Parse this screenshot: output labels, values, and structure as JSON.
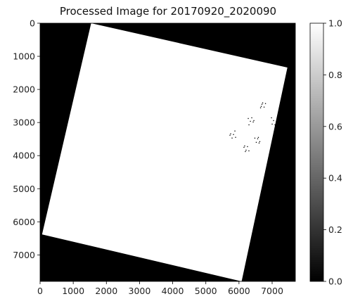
{
  "chart_data": {
    "type": "heatmap",
    "title": "Processed Image for 20170920_2020090",
    "xlabel": "",
    "ylabel": "",
    "xlim": [
      0,
      7700
    ],
    "ylim": [
      7800,
      0
    ],
    "x_ticks": [
      0,
      1000,
      2000,
      3000,
      4000,
      5000,
      6000,
      7000
    ],
    "y_ticks": [
      0,
      1000,
      2000,
      3000,
      4000,
      5000,
      6000,
      7000
    ],
    "x_tick_labels": [
      "0",
      "1000",
      "2000",
      "3000",
      "4000",
      "5000",
      "6000",
      "7000"
    ],
    "y_tick_labels": [
      "0",
      "1000",
      "2000",
      "3000",
      "4000",
      "5000",
      "6000",
      "7000"
    ],
    "colormap": "gray",
    "background_value": 0.0,
    "valid_region_value": 1.0,
    "valid_region_corners": [
      [
        1540,
        0
      ],
      [
        7460,
        1340
      ],
      [
        6080,
        7800
      ],
      [
        60,
        6380
      ]
    ],
    "speckle_clusters": [
      {
        "x": 7050,
        "y": 2950,
        "value": 0.0
      },
      {
        "x": 6700,
        "y": 2500,
        "value": 0.0
      },
      {
        "x": 7150,
        "y": 3300,
        "value": 0.0
      },
      {
        "x": 5800,
        "y": 3350,
        "value": 0.0
      },
      {
        "x": 6200,
        "y": 3800,
        "value": 0.0
      },
      {
        "x": 6550,
        "y": 3500,
        "value": 0.0
      },
      {
        "x": 6350,
        "y": 2950,
        "value": 0.0
      }
    ],
    "colorbar": {
      "range": [
        0.0,
        1.0
      ],
      "ticks": [
        0.0,
        0.2,
        0.4,
        0.6,
        0.8,
        1.0
      ],
      "tick_labels": [
        "0.0",
        "0.2",
        "0.4",
        "0.6",
        "0.8",
        "1.0"
      ]
    }
  }
}
